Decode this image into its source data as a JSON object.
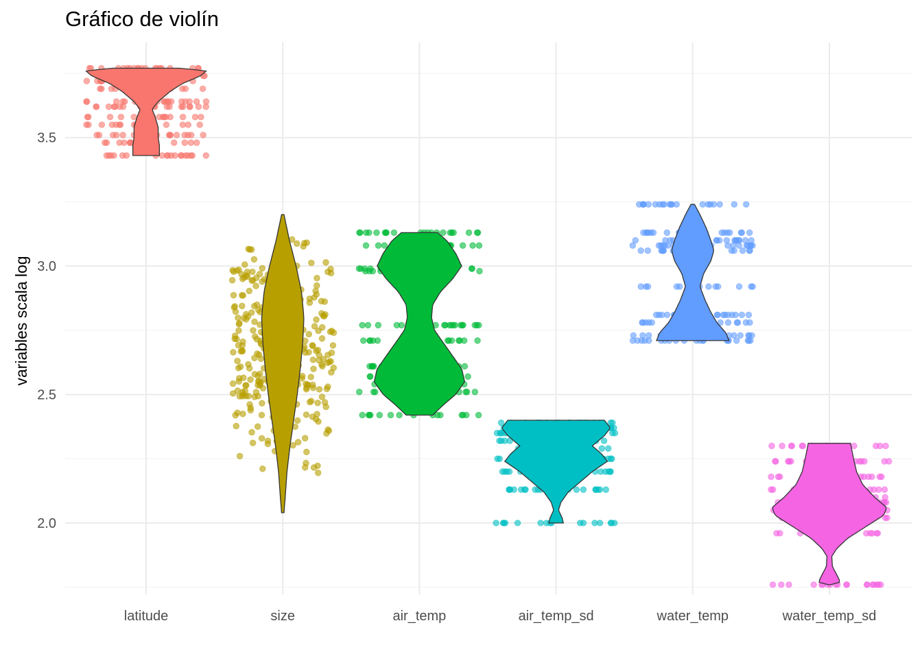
{
  "chart_data": {
    "type": "violin",
    "title": "Gráfico de violín",
    "xlabel": "",
    "ylabel": "variables scala log",
    "ylim": [
      1.72,
      3.87
    ],
    "yticks": [
      2.0,
      2.5,
      3.0,
      3.5
    ],
    "ytick_labels": [
      "2.0",
      "2.5",
      "3.0",
      "3.5"
    ],
    "grid": true,
    "legend": "none",
    "categories": [
      "latitude",
      "size",
      "air_temp",
      "air_temp_sd",
      "water_temp",
      "water_temp_sd"
    ],
    "series": [
      {
        "category": "latitude",
        "color": "#F8766D",
        "min": 3.43,
        "max": 3.77,
        "profile": [
          [
            3.43,
            0.22
          ],
          [
            3.47,
            0.22
          ],
          [
            3.5,
            0.2
          ],
          [
            3.54,
            0.2
          ],
          [
            3.58,
            0.15
          ],
          [
            3.61,
            0.1
          ],
          [
            3.64,
            0.2
          ],
          [
            3.68,
            0.4
          ],
          [
            3.71,
            0.6
          ],
          [
            3.74,
            0.9
          ],
          [
            3.76,
            1.0
          ],
          [
            3.77,
            0.55
          ]
        ],
        "point_levels": [
          3.43,
          3.48,
          3.51,
          3.55,
          3.58,
          3.62,
          3.64,
          3.69,
          3.72,
          3.74,
          3.77
        ]
      },
      {
        "category": "size",
        "color": "#B79F00",
        "min": 2.04,
        "max": 3.2,
        "profile": [
          [
            2.04,
            0.02
          ],
          [
            2.1,
            0.04
          ],
          [
            2.2,
            0.07
          ],
          [
            2.3,
            0.12
          ],
          [
            2.4,
            0.18
          ],
          [
            2.5,
            0.24
          ],
          [
            2.6,
            0.29
          ],
          [
            2.7,
            0.33
          ],
          [
            2.8,
            0.35
          ],
          [
            2.9,
            0.31
          ],
          [
            3.0,
            0.22
          ],
          [
            3.1,
            0.11
          ],
          [
            3.2,
            0.02
          ]
        ],
        "point_levels": []
      },
      {
        "category": "air_temp",
        "color": "#00BA38",
        "min": 2.42,
        "max": 3.13,
        "profile": [
          [
            2.42,
            0.22
          ],
          [
            2.46,
            0.4
          ],
          [
            2.5,
            0.6
          ],
          [
            2.55,
            0.75
          ],
          [
            2.6,
            0.7
          ],
          [
            2.65,
            0.55
          ],
          [
            2.7,
            0.4
          ],
          [
            2.75,
            0.25
          ],
          [
            2.8,
            0.2
          ],
          [
            2.85,
            0.22
          ],
          [
            2.9,
            0.35
          ],
          [
            2.95,
            0.55
          ],
          [
            3.0,
            0.7
          ],
          [
            3.05,
            0.6
          ],
          [
            3.1,
            0.45
          ],
          [
            3.13,
            0.3
          ]
        ],
        "point_levels": [
          2.42,
          2.51,
          2.54,
          2.57,
          2.61,
          2.71,
          2.77,
          2.98,
          2.99,
          3.08,
          3.13
        ]
      },
      {
        "category": "air_temp_sd",
        "color": "#00BFC4",
        "min": 2.0,
        "max": 2.4,
        "profile": [
          [
            2.0,
            0.12
          ],
          [
            2.02,
            0.1
          ],
          [
            2.05,
            0.04
          ],
          [
            2.08,
            0.08
          ],
          [
            2.12,
            0.2
          ],
          [
            2.16,
            0.4
          ],
          [
            2.2,
            0.6
          ],
          [
            2.24,
            0.85
          ],
          [
            2.27,
            0.75
          ],
          [
            2.3,
            0.6
          ],
          [
            2.34,
            0.8
          ],
          [
            2.37,
            0.9
          ],
          [
            2.4,
            0.8
          ]
        ],
        "point_levels": [
          2.0,
          2.13,
          2.2,
          2.25,
          2.29,
          2.32,
          2.35,
          2.37,
          2.39
        ]
      },
      {
        "category": "water_temp",
        "color": "#619CFF",
        "min": 2.71,
        "max": 3.24,
        "profile": [
          [
            2.71,
            0.6
          ],
          [
            2.74,
            0.55
          ],
          [
            2.78,
            0.4
          ],
          [
            2.82,
            0.3
          ],
          [
            2.87,
            0.2
          ],
          [
            2.92,
            0.12
          ],
          [
            2.97,
            0.18
          ],
          [
            3.02,
            0.3
          ],
          [
            3.06,
            0.35
          ],
          [
            3.1,
            0.3
          ],
          [
            3.15,
            0.22
          ],
          [
            3.2,
            0.12
          ],
          [
            3.24,
            0.03
          ]
        ],
        "point_levels": [
          2.71,
          2.73,
          2.78,
          2.81,
          2.92,
          3.06,
          3.08,
          3.1,
          3.13,
          3.24
        ]
      },
      {
        "category": "water_temp_sd",
        "color": "#F564E3",
        "min": 1.76,
        "max": 2.31,
        "profile": [
          [
            1.76,
            0.02
          ],
          [
            1.77,
            0.18
          ],
          [
            1.8,
            0.12
          ],
          [
            1.83,
            0.05
          ],
          [
            1.87,
            0.04
          ],
          [
            1.9,
            0.12
          ],
          [
            1.94,
            0.3
          ],
          [
            1.97,
            0.5
          ],
          [
            2.0,
            0.7
          ],
          [
            2.03,
            0.9
          ],
          [
            2.06,
            0.95
          ],
          [
            2.1,
            0.75
          ],
          [
            2.15,
            0.55
          ],
          [
            2.2,
            0.45
          ],
          [
            2.25,
            0.4
          ],
          [
            2.31,
            0.35
          ]
        ],
        "point_levels": [
          1.76,
          1.96,
          2.02,
          2.05,
          2.08,
          2.1,
          2.13,
          2.18,
          2.24,
          2.3
        ]
      }
    ]
  }
}
